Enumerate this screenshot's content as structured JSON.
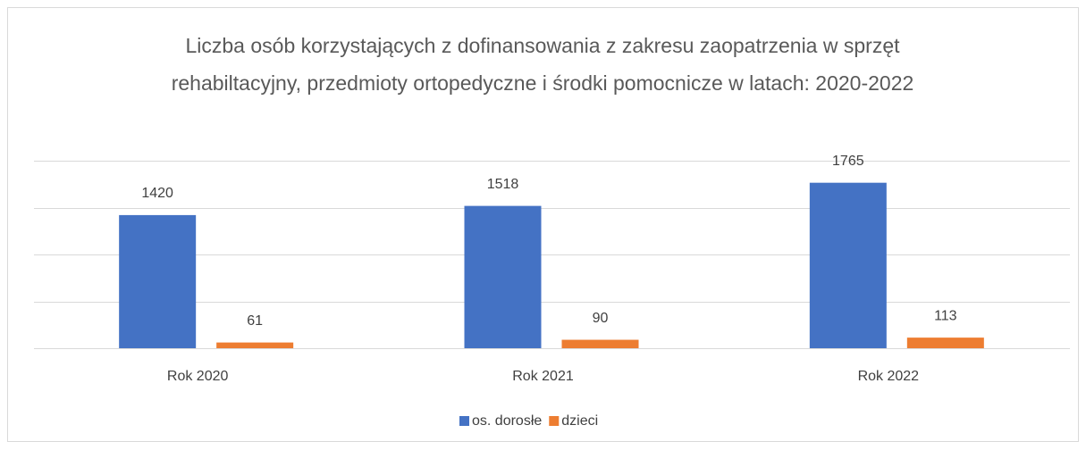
{
  "chart_data": {
    "type": "bar",
    "title": "Liczba osób korzystających z dofinansowania z zakresu zaopatrzenia w sprzęt rehabiltacyjny, przedmioty ortopedyczne i środki pomocnicze w latach: 2020-2022",
    "categories": [
      "Rok 2020",
      "Rok 2021",
      "Rok 2022"
    ],
    "series": [
      {
        "name": "os. dorosłe",
        "color": "#4472c4",
        "values": [
          1420,
          1518,
          1765
        ]
      },
      {
        "name": "dzieci",
        "color": "#ed7d31",
        "values": [
          61,
          90,
          113
        ]
      }
    ],
    "ylim": [
      0,
      2000
    ],
    "yticks": [
      0,
      500,
      1000,
      1500,
      2000
    ],
    "grid": true,
    "legend": "bottom"
  }
}
